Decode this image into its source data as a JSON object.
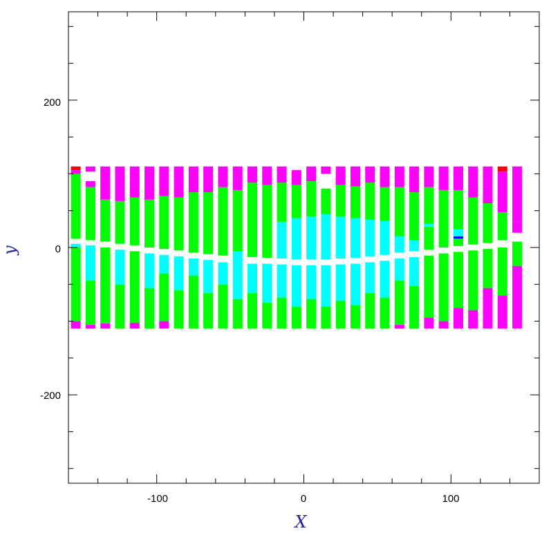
{
  "chart_data": {
    "type": "heatmap",
    "title": "",
    "xlabel": "X",
    "ylabel": "y",
    "xlim": [
      -160,
      160
    ],
    "ylim": [
      -320,
      320
    ],
    "x_ticks": [
      -100,
      0,
      100
    ],
    "y_ticks": [
      -200,
      0,
      200
    ],
    "x_tick_labels": [
      "-100",
      "0",
      "100"
    ],
    "y_tick_labels": [
      "-200",
      "0",
      "200"
    ],
    "grid": false,
    "legend": "none",
    "colors": {
      "magenta": "#ff00ff",
      "green": "#00ff00",
      "cyan": "#00ffff",
      "red": "#ff0000",
      "blue": "#0000ff",
      "gray": "#808080"
    },
    "strips": [
      {
        "x": -155,
        "segments": [
          {
            "y0": -110,
            "y1": -100,
            "c": "magenta"
          },
          {
            "y0": -100,
            "y1": 0,
            "c": "green"
          },
          {
            "y0": 0,
            "y1": 5,
            "c": "cyan"
          },
          {
            "y0": 12,
            "y1": 100,
            "c": "green"
          },
          {
            "y0": 100,
            "y1": 105,
            "c": "magenta"
          },
          {
            "y0": 105,
            "y1": 110,
            "c": "red"
          }
        ]
      },
      {
        "x": -145,
        "segments": [
          {
            "y0": -110,
            "y1": -105,
            "c": "magenta"
          },
          {
            "y0": -105,
            "y1": -45,
            "c": "green"
          },
          {
            "y0": -45,
            "y1": 3,
            "c": "cyan"
          },
          {
            "y0": 10,
            "y1": 82,
            "c": "green"
          },
          {
            "y0": 82,
            "y1": 90,
            "c": "magenta"
          },
          {
            "y0": 103,
            "y1": 110,
            "c": "magenta"
          }
        ]
      },
      {
        "x": -135,
        "segments": [
          {
            "y0": -110,
            "y1": -103,
            "c": "magenta"
          },
          {
            "y0": -103,
            "y1": 0,
            "c": "green"
          },
          {
            "y0": 8,
            "y1": 65,
            "c": "green"
          },
          {
            "y0": 65,
            "y1": 110,
            "c": "magenta"
          }
        ]
      },
      {
        "x": -125,
        "segments": [
          {
            "y0": -110,
            "y1": -50,
            "c": "green"
          },
          {
            "y0": -50,
            "y1": -3,
            "c": "cyan"
          },
          {
            "y0": 5,
            "y1": 63,
            "c": "green"
          },
          {
            "y0": 63,
            "y1": 110,
            "c": "magenta"
          }
        ]
      },
      {
        "x": -115,
        "segments": [
          {
            "y0": -110,
            "y1": -102,
            "c": "magenta"
          },
          {
            "y0": -102,
            "y1": -5,
            "c": "green"
          },
          {
            "y0": 3,
            "y1": 68,
            "c": "green"
          },
          {
            "y0": 68,
            "y1": 110,
            "c": "magenta"
          }
        ]
      },
      {
        "x": -105,
        "segments": [
          {
            "y0": -110,
            "y1": -55,
            "c": "green"
          },
          {
            "y0": -55,
            "y1": -8,
            "c": "cyan"
          },
          {
            "y0": 0,
            "y1": 65,
            "c": "green"
          },
          {
            "y0": 65,
            "y1": 110,
            "c": "magenta"
          }
        ]
      },
      {
        "x": -95,
        "segments": [
          {
            "y0": -110,
            "y1": -100,
            "c": "magenta"
          },
          {
            "y0": -100,
            "y1": -35,
            "c": "green"
          },
          {
            "y0": -35,
            "y1": -10,
            "c": "cyan"
          },
          {
            "y0": -2,
            "y1": 70,
            "c": "green"
          },
          {
            "y0": 70,
            "y1": 110,
            "c": "magenta"
          }
        ]
      },
      {
        "x": -85,
        "segments": [
          {
            "y0": -110,
            "y1": -58,
            "c": "green"
          },
          {
            "y0": -58,
            "y1": -12,
            "c": "cyan"
          },
          {
            "y0": -4,
            "y1": 68,
            "c": "green"
          },
          {
            "y0": 68,
            "y1": 110,
            "c": "magenta"
          }
        ]
      },
      {
        "x": -75,
        "segments": [
          {
            "y0": -110,
            "y1": -38,
            "c": "green"
          },
          {
            "y0": -38,
            "y1": -15,
            "c": "cyan"
          },
          {
            "y0": -7,
            "y1": 75,
            "c": "green"
          },
          {
            "y0": 75,
            "y1": 110,
            "c": "magenta"
          }
        ]
      },
      {
        "x": -65,
        "segments": [
          {
            "y0": -110,
            "y1": -62,
            "c": "green"
          },
          {
            "y0": -62,
            "y1": -17,
            "c": "cyan"
          },
          {
            "y0": -9,
            "y1": 75,
            "c": "green"
          },
          {
            "y0": 75,
            "y1": 110,
            "c": "magenta"
          }
        ]
      },
      {
        "x": -55,
        "segments": [
          {
            "y0": -110,
            "y1": -50,
            "c": "green"
          },
          {
            "y0": -50,
            "y1": -20,
            "c": "cyan"
          },
          {
            "y0": -11,
            "y1": 82,
            "c": "green"
          },
          {
            "y0": 82,
            "y1": 110,
            "c": "magenta"
          }
        ]
      },
      {
        "x": -45,
        "segments": [
          {
            "y0": -110,
            "y1": -70,
            "c": "green"
          },
          {
            "y0": -70,
            "y1": -5,
            "c": "cyan"
          },
          {
            "y0": -5,
            "y1": 78,
            "c": "green"
          },
          {
            "y0": 78,
            "y1": 110,
            "c": "magenta"
          }
        ]
      },
      {
        "x": -35,
        "segments": [
          {
            "y0": -110,
            "y1": -62,
            "c": "green"
          },
          {
            "y0": -62,
            "y1": -22,
            "c": "cyan"
          },
          {
            "y0": -13,
            "y1": 88,
            "c": "green"
          },
          {
            "y0": 88,
            "y1": 110,
            "c": "magenta"
          }
        ]
      },
      {
        "x": -25,
        "segments": [
          {
            "y0": -110,
            "y1": -75,
            "c": "green"
          },
          {
            "y0": -75,
            "y1": -22,
            "c": "cyan"
          },
          {
            "y0": -14,
            "y1": 85,
            "c": "green"
          },
          {
            "y0": 85,
            "y1": 110,
            "c": "magenta"
          }
        ]
      },
      {
        "x": -15,
        "segments": [
          {
            "y0": -110,
            "y1": -68,
            "c": "green"
          },
          {
            "y0": -68,
            "y1": -23,
            "c": "cyan"
          },
          {
            "y0": -15,
            "y1": 35,
            "c": "cyan"
          },
          {
            "y0": 35,
            "y1": 88,
            "c": "green"
          },
          {
            "y0": 88,
            "y1": 110,
            "c": "magenta"
          }
        ]
      },
      {
        "x": -5,
        "segments": [
          {
            "y0": -110,
            "y1": -80,
            "c": "green"
          },
          {
            "y0": -80,
            "y1": -24,
            "c": "cyan"
          },
          {
            "y0": -16,
            "y1": 40,
            "c": "cyan"
          },
          {
            "y0": 40,
            "y1": 85,
            "c": "green"
          },
          {
            "y0": 85,
            "y1": 105,
            "c": "magenta"
          }
        ]
      },
      {
        "x": 5,
        "segments": [
          {
            "y0": -110,
            "y1": -70,
            "c": "green"
          },
          {
            "y0": -70,
            "y1": -24,
            "c": "cyan"
          },
          {
            "y0": -16,
            "y1": 42,
            "c": "cyan"
          },
          {
            "y0": 42,
            "y1": 90,
            "c": "green"
          },
          {
            "y0": 90,
            "y1": 110,
            "c": "magenta"
          }
        ]
      },
      {
        "x": 15,
        "segments": [
          {
            "y0": -110,
            "y1": -80,
            "c": "green"
          },
          {
            "y0": -80,
            "y1": -24,
            "c": "cyan"
          },
          {
            "y0": -16,
            "y1": 45,
            "c": "cyan"
          },
          {
            "y0": 45,
            "y1": 80,
            "c": "green"
          },
          {
            "y0": 100,
            "y1": 110,
            "c": "magenta"
          }
        ]
      },
      {
        "x": 25,
        "segments": [
          {
            "y0": -110,
            "y1": -72,
            "c": "green"
          },
          {
            "y0": -72,
            "y1": -23,
            "c": "cyan"
          },
          {
            "y0": -15,
            "y1": 42,
            "c": "cyan"
          },
          {
            "y0": 42,
            "y1": 85,
            "c": "green"
          },
          {
            "y0": 85,
            "y1": 110,
            "c": "magenta"
          }
        ]
      },
      {
        "x": 35,
        "segments": [
          {
            "y0": -110,
            "y1": -78,
            "c": "green"
          },
          {
            "y0": -78,
            "y1": -22,
            "c": "cyan"
          },
          {
            "y0": -14,
            "y1": 40,
            "c": "cyan"
          },
          {
            "y0": 40,
            "y1": 83,
            "c": "green"
          },
          {
            "y0": 83,
            "y1": 110,
            "c": "magenta"
          }
        ]
      },
      {
        "x": 45,
        "segments": [
          {
            "y0": -110,
            "y1": -62,
            "c": "green"
          },
          {
            "y0": -62,
            "y1": -20,
            "c": "cyan"
          },
          {
            "y0": -12,
            "y1": 38,
            "c": "cyan"
          },
          {
            "y0": 38,
            "y1": 88,
            "c": "green"
          },
          {
            "y0": 88,
            "y1": 110,
            "c": "magenta"
          }
        ]
      },
      {
        "x": 55,
        "segments": [
          {
            "y0": -110,
            "y1": -68,
            "c": "green"
          },
          {
            "y0": -68,
            "y1": -18,
            "c": "cyan"
          },
          {
            "y0": -10,
            "y1": 36,
            "c": "cyan"
          },
          {
            "y0": 36,
            "y1": 82,
            "c": "green"
          },
          {
            "y0": 82,
            "y1": 110,
            "c": "magenta"
          }
        ]
      },
      {
        "x": 65,
        "segments": [
          {
            "y0": -110,
            "y1": -105,
            "c": "magenta"
          },
          {
            "y0": -105,
            "y1": -45,
            "c": "green"
          },
          {
            "y0": -45,
            "y1": -15,
            "c": "cyan"
          },
          {
            "y0": -7,
            "y1": 15,
            "c": "cyan"
          },
          {
            "y0": 15,
            "y1": 82,
            "c": "green"
          },
          {
            "y0": 82,
            "y1": 110,
            "c": "magenta"
          }
        ]
      },
      {
        "x": 75,
        "segments": [
          {
            "y0": -110,
            "y1": -52,
            "c": "green"
          },
          {
            "y0": -52,
            "y1": -13,
            "c": "cyan"
          },
          {
            "y0": -5,
            "y1": 10,
            "c": "cyan"
          },
          {
            "y0": 10,
            "y1": 75,
            "c": "green"
          },
          {
            "y0": 75,
            "y1": 110,
            "c": "magenta"
          }
        ]
      },
      {
        "x": 85,
        "segments": [
          {
            "y0": -110,
            "y1": -95,
            "c": "magenta"
          },
          {
            "y0": -95,
            "y1": -11,
            "c": "green"
          },
          {
            "y0": -3,
            "y1": 28,
            "c": "green"
          },
          {
            "y0": 28,
            "y1": 32,
            "c": "cyan"
          },
          {
            "y0": 32,
            "y1": 82,
            "c": "green"
          },
          {
            "y0": 82,
            "y1": 110,
            "c": "magenta"
          }
        ]
      },
      {
        "x": 95,
        "segments": [
          {
            "y0": -110,
            "y1": -100,
            "c": "magenta"
          },
          {
            "y0": -100,
            "y1": -8,
            "c": "green"
          },
          {
            "y0": 0,
            "y1": 78,
            "c": "green"
          },
          {
            "y0": 78,
            "y1": 110,
            "c": "magenta"
          }
        ]
      },
      {
        "x": 105,
        "segments": [
          {
            "y0": -110,
            "y1": -82,
            "c": "magenta"
          },
          {
            "y0": -82,
            "y1": -6,
            "c": "green"
          },
          {
            "y0": 2,
            "y1": 12,
            "c": "green"
          },
          {
            "y0": 12,
            "y1": 15,
            "c": "blue"
          },
          {
            "y0": 15,
            "y1": 25,
            "c": "cyan"
          },
          {
            "y0": 25,
            "y1": 78,
            "c": "green"
          },
          {
            "y0": 78,
            "y1": 110,
            "c": "magenta"
          }
        ]
      },
      {
        "x": 115,
        "segments": [
          {
            "y0": -110,
            "y1": -85,
            "c": "magenta"
          },
          {
            "y0": -85,
            "y1": -4,
            "c": "green"
          },
          {
            "y0": 4,
            "y1": 68,
            "c": "green"
          },
          {
            "y0": 68,
            "y1": 110,
            "c": "magenta"
          }
        ]
      },
      {
        "x": 125,
        "segments": [
          {
            "y0": -110,
            "y1": -55,
            "c": "magenta"
          },
          {
            "y0": -55,
            "y1": -2,
            "c": "green"
          },
          {
            "y0": 6,
            "y1": 60,
            "c": "green"
          },
          {
            "y0": 60,
            "y1": 110,
            "c": "magenta"
          }
        ]
      },
      {
        "x": 135,
        "segments": [
          {
            "y0": -110,
            "y1": -65,
            "c": "magenta"
          },
          {
            "y0": -65,
            "y1": 0,
            "c": "green"
          },
          {
            "y0": 10,
            "y1": 48,
            "c": "green"
          },
          {
            "y0": 48,
            "y1": 103,
            "c": "magenta"
          },
          {
            "y0": 103,
            "y1": 110,
            "c": "red"
          }
        ]
      },
      {
        "x": 145,
        "segments": [
          {
            "y0": -110,
            "y1": -25,
            "c": "magenta"
          },
          {
            "y0": -25,
            "y1": 8,
            "c": "green"
          },
          {
            "y0": 20,
            "y1": 35,
            "c": "magenta"
          },
          {
            "y0": 35,
            "y1": 110,
            "c": "magenta"
          }
        ]
      }
    ],
    "strip_width": 6.6
  }
}
